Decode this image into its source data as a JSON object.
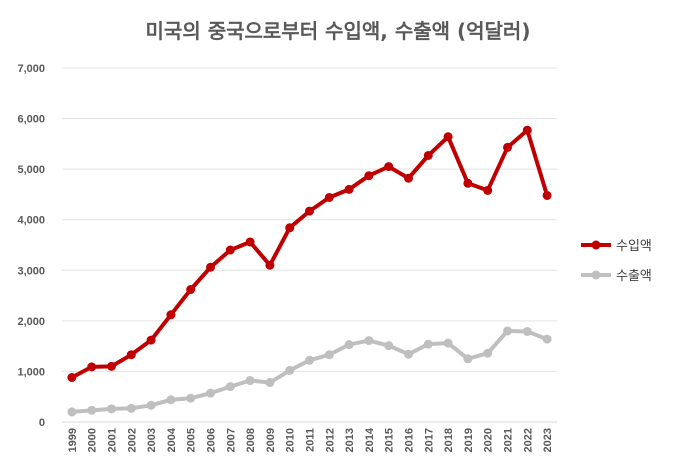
{
  "chart_data": {
    "type": "line",
    "title": "미국의 중국으로부터 수입액, 수출액 (억달러)",
    "categories": [
      "1999",
      "2000",
      "2001",
      "2002",
      "2003",
      "2004",
      "2005",
      "2006",
      "2007",
      "2008",
      "2009",
      "2010",
      "2011",
      "2012",
      "2013",
      "2014",
      "2015",
      "2016",
      "2017",
      "2018",
      "2019",
      "2020",
      "2021",
      "2022",
      "2023"
    ],
    "series": [
      {
        "name": "수입액",
        "color": "#C00000",
        "values": [
          880,
          1090,
          1100,
          1330,
          1620,
          2120,
          2620,
          3060,
          3400,
          3560,
          3100,
          3840,
          4170,
          4440,
          4600,
          4870,
          5050,
          4820,
          5270,
          5640,
          4720,
          4580,
          5430,
          5770,
          4480
        ]
      },
      {
        "name": "수출액",
        "color": "#BFBFBF",
        "values": [
          200,
          230,
          260,
          270,
          330,
          440,
          470,
          570,
          700,
          820,
          780,
          1020,
          1220,
          1330,
          1530,
          1610,
          1510,
          1340,
          1540,
          1560,
          1250,
          1360,
          1800,
          1790,
          1640
        ]
      }
    ],
    "yticks": [
      "0",
      "1,000",
      "2,000",
      "3,000",
      "4,000",
      "5,000",
      "6,000",
      "7,000"
    ],
    "ylim": [
      0,
      7000
    ],
    "grid": true,
    "legend": "right"
  }
}
